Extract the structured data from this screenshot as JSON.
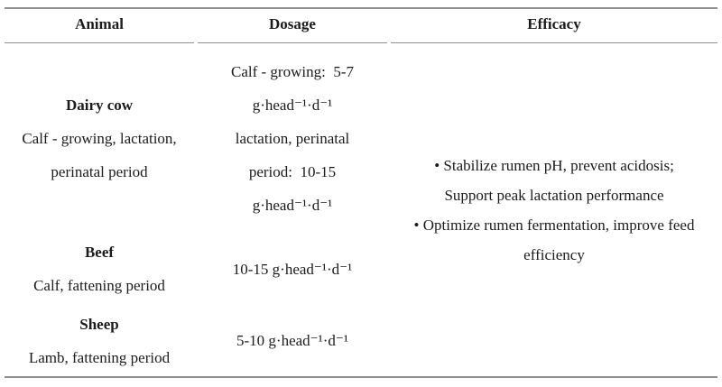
{
  "colors": {
    "border": "#8f8f8f",
    "text": "#1b1b1b",
    "background": "#ffffff"
  },
  "table": {
    "columns": [
      {
        "label": "Animal"
      },
      {
        "label": "Dosage"
      },
      {
        "label": "Efficacy"
      }
    ],
    "rows": [
      {
        "animal": "Dairy cow",
        "animal_details": [
          "Calf - growing, lactation,",
          "perinatal period"
        ],
        "dosage_lines": [
          "Calf - growing:  5-7",
          "g·head⁻¹·d⁻¹",
          "lactation, perinatal",
          "period:  10-15",
          "g·head⁻¹·d⁻¹"
        ]
      },
      {
        "animal": "Beef",
        "animal_details": [
          "Calf, fattening period"
        ],
        "dosage_lines": [
          "10-15 g·head⁻¹·d⁻¹"
        ]
      },
      {
        "animal": "Sheep",
        "animal_details": [
          "Lamb, fattening period"
        ],
        "dosage_lines": [
          "5-10 g·head⁻¹·d⁻¹"
        ]
      }
    ],
    "efficacy_lines": [
      "• Stabilize rumen pH, prevent acidosis;",
      "Support peak lactation performance",
      "• Optimize rumen fermentation, improve feed",
      "efficiency"
    ]
  }
}
